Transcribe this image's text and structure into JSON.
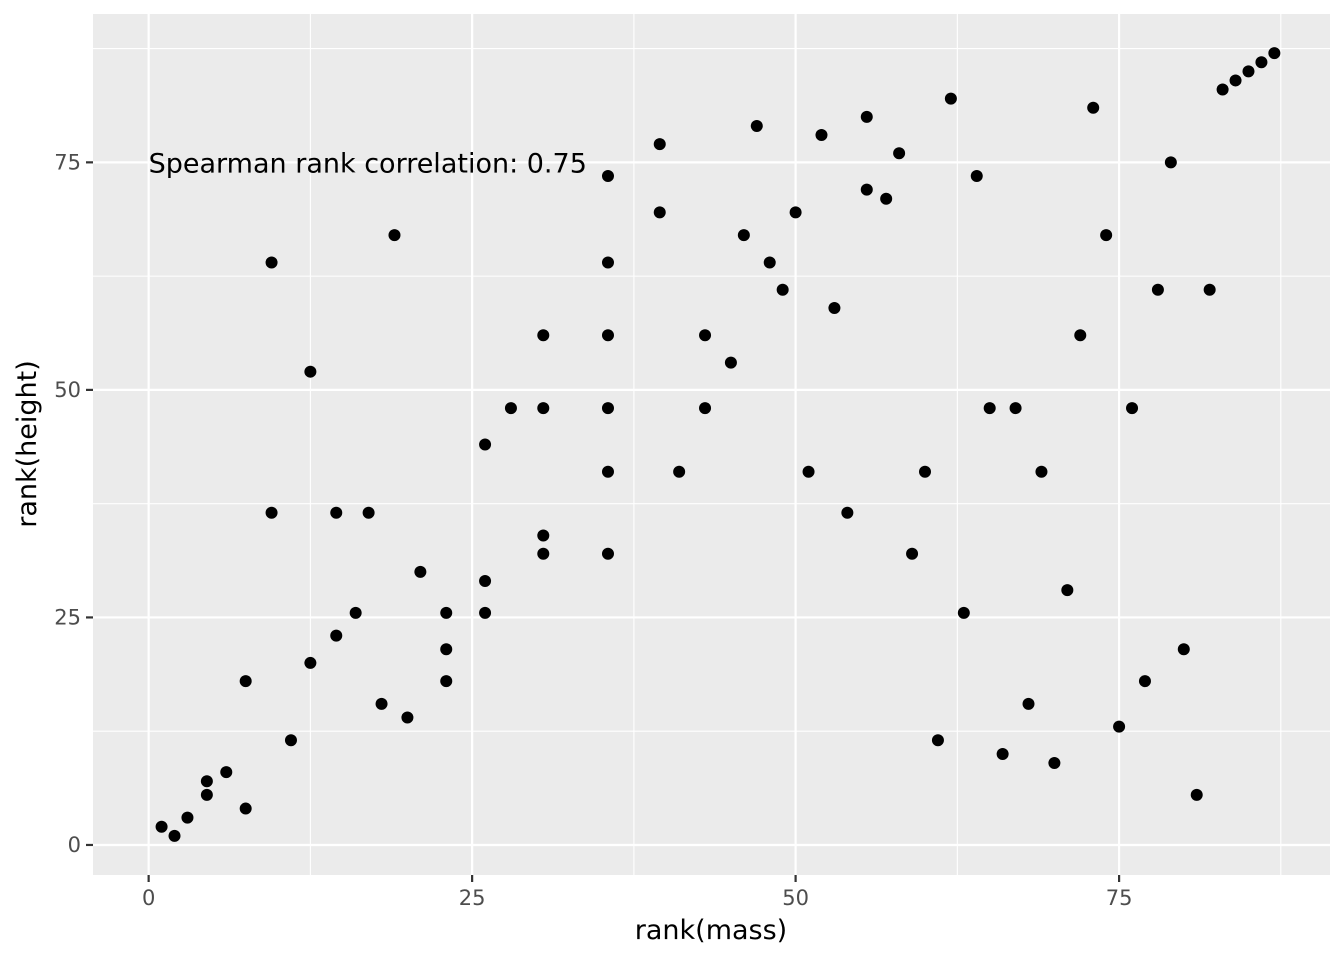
{
  "chart_data": {
    "type": "scatter",
    "title": "",
    "xlabel": "rank(mass)",
    "ylabel": "rank(height)",
    "xlim": [
      -4.3,
      91.3
    ],
    "ylim": [
      -3.3,
      91.3
    ],
    "x_ticks": [
      0,
      25,
      50,
      75
    ],
    "x_tick_labels": [
      "0",
      "25",
      "50",
      "75"
    ],
    "y_ticks": [
      0,
      25,
      50,
      75
    ],
    "y_tick_labels": [
      "0",
      "25",
      "50",
      "75"
    ],
    "grid": true,
    "legend": "none",
    "annotation": {
      "text": "Spearman rank correlation: 0.75",
      "x": 0,
      "y": 75
    },
    "points": [
      [
        1,
        2
      ],
      [
        2,
        1
      ],
      [
        3,
        3
      ],
      [
        4.5,
        7
      ],
      [
        4.5,
        5.5
      ],
      [
        6,
        8
      ],
      [
        7.5,
        18
      ],
      [
        7.5,
        4
      ],
      [
        9.5,
        64
      ],
      [
        9.5,
        36.5
      ],
      [
        11,
        11.5
      ],
      [
        12.5,
        52
      ],
      [
        12.5,
        20
      ],
      [
        14.5,
        36.5
      ],
      [
        14.5,
        23
      ],
      [
        16,
        25.5
      ],
      [
        17,
        36.5
      ],
      [
        18,
        15.5
      ],
      [
        19,
        67
      ],
      [
        20,
        14
      ],
      [
        21,
        30
      ],
      [
        23,
        25.5
      ],
      [
        23,
        21.5
      ],
      [
        23,
        18
      ],
      [
        26,
        44
      ],
      [
        26,
        29
      ],
      [
        26,
        25.5
      ],
      [
        28,
        48
      ],
      [
        30.5,
        56
      ],
      [
        30.5,
        48
      ],
      [
        30.5,
        34
      ],
      [
        30.5,
        32
      ],
      [
        35.5,
        73.5
      ],
      [
        35.5,
        64
      ],
      [
        35.5,
        56
      ],
      [
        35.5,
        48
      ],
      [
        35.5,
        41
      ],
      [
        35.5,
        32
      ],
      [
        39.5,
        77
      ],
      [
        39.5,
        69.5
      ],
      [
        41,
        41
      ],
      [
        43,
        56
      ],
      [
        43,
        48
      ],
      [
        45,
        53
      ],
      [
        46,
        67
      ],
      [
        47,
        79
      ],
      [
        48,
        64
      ],
      [
        49,
        61
      ],
      [
        50,
        69.5
      ],
      [
        51,
        41
      ],
      [
        52,
        78
      ],
      [
        53,
        59
      ],
      [
        54,
        36.5
      ],
      [
        55.5,
        80
      ],
      [
        55.5,
        72
      ],
      [
        57,
        71
      ],
      [
        58,
        76
      ],
      [
        59,
        32
      ],
      [
        60,
        41
      ],
      [
        61,
        11.5
      ],
      [
        62,
        82
      ],
      [
        63,
        25.5
      ],
      [
        64,
        73.5
      ],
      [
        65,
        48
      ],
      [
        66,
        10
      ],
      [
        67,
        48
      ],
      [
        68,
        15.5
      ],
      [
        69,
        41
      ],
      [
        70,
        9
      ],
      [
        71,
        28
      ],
      [
        72,
        56
      ],
      [
        73,
        81
      ],
      [
        74,
        67
      ],
      [
        75,
        13
      ],
      [
        76,
        48
      ],
      [
        77,
        18
      ],
      [
        78,
        61
      ],
      [
        79,
        75
      ],
      [
        80,
        21.5
      ],
      [
        81,
        5.5
      ],
      [
        82,
        61
      ],
      [
        83,
        83
      ],
      [
        84,
        84
      ],
      [
        85,
        85
      ],
      [
        86,
        86
      ],
      [
        87,
        87
      ]
    ]
  }
}
